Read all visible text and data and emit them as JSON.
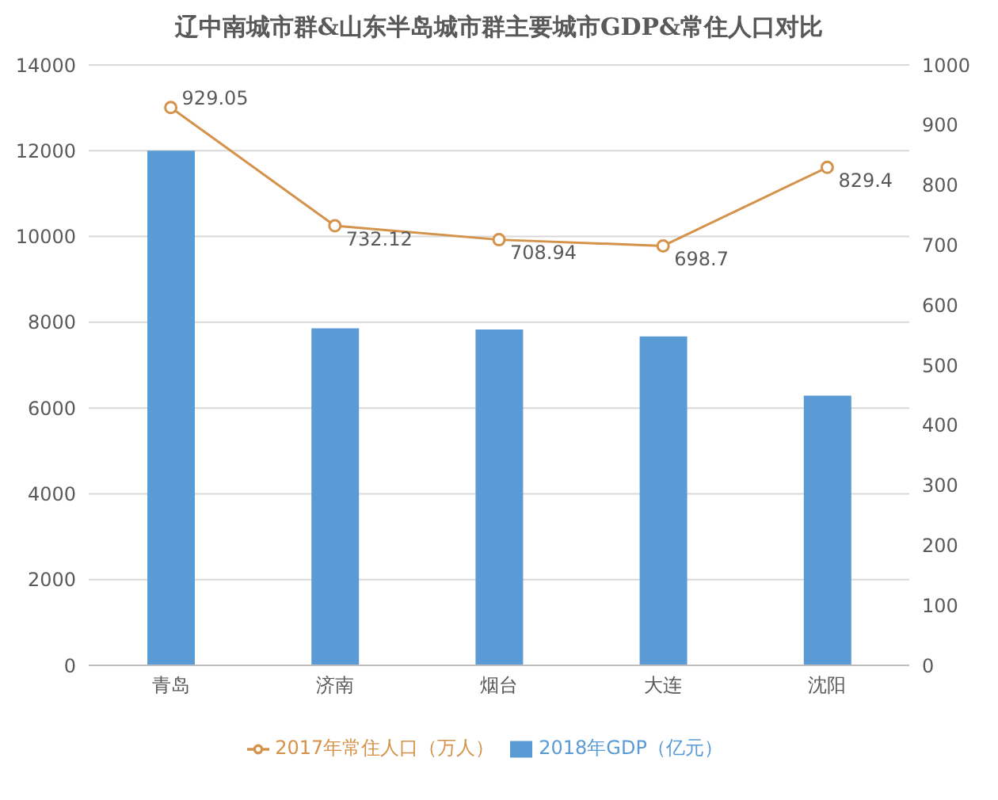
{
  "chart_data": {
    "type": "bar",
    "title": "辽中南城市群&山东半岛城市群主要城市GDP&常住人口对比",
    "categories": [
      "青岛",
      "济南",
      "烟台",
      "大连",
      "沈阳"
    ],
    "series": [
      {
        "name": "2018年GDP（亿元）",
        "color": "#5b9bd5",
        "values": [
          12000,
          7860,
          7830,
          7670,
          6290
        ]
      },
      {
        "name": "2017年常住人口（万人）",
        "type": "line",
        "axis": "y2",
        "color": "#d4924a",
        "values": [
          929.05,
          732.12,
          708.94,
          698.7,
          829.4
        ],
        "value_labels": [
          "929.05",
          "732.12",
          "708.94",
          "698.7",
          "829.4"
        ]
      }
    ],
    "ylim": [
      0,
      14000
    ],
    "yticks": [
      0,
      2000,
      4000,
      6000,
      8000,
      10000,
      12000,
      14000
    ],
    "y2lim": [
      0,
      1000
    ],
    "y2ticks": [
      0,
      100,
      200,
      300,
      400,
      500,
      600,
      700,
      800,
      900,
      1000
    ],
    "grid": "y",
    "legend": "bottom",
    "marker": "circle"
  }
}
